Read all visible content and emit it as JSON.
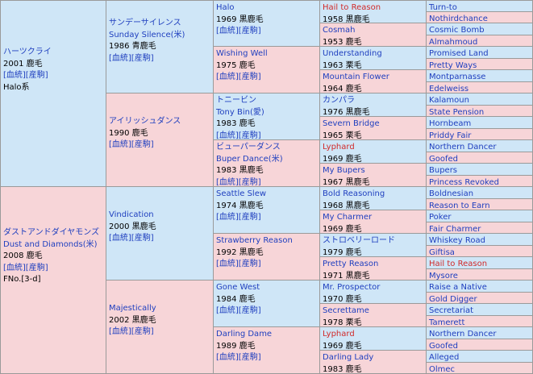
{
  "horse": {
    "name": "ハーツクライ",
    "year": "2001 鹿毛",
    "links": "[血統][産駒]",
    "line": "Halo系"
  },
  "gen1": [
    {
      "name": "ハーツクライ",
      "year": "2001 鹿毛",
      "links": "[血統][産駒]",
      "extra": "Halo系",
      "sex": "m"
    },
    {
      "name": "ダストアンドダイヤモンズ",
      "name2": "Dust and Diamonds(米)",
      "year": "2008 鹿毛",
      "links": "[血統][産駒]",
      "extra": "FNo.[3-d]",
      "sex": "f"
    }
  ],
  "gen2": [
    {
      "name": "サンデーサイレンス",
      "name2": "Sunday Silence(米)",
      "year": "1986 青鹿毛",
      "links": "[血統][産駒]",
      "sex": "m"
    },
    {
      "name": "アイリッシュダンス",
      "year": "1990 鹿毛",
      "links": "[血統][産駒]",
      "sex": "f"
    },
    {
      "name": "Vindication",
      "year": "2000 黒鹿毛",
      "links": "[血統][産駒]",
      "sex": "m"
    },
    {
      "name": "Majestically",
      "year": "2002 黒鹿毛",
      "links": "[血統][産駒]",
      "sex": "f"
    }
  ],
  "gen3": [
    {
      "name": "Halo",
      "year": "1969 黒鹿毛",
      "links": "[血統][産駒]",
      "sex": "m"
    },
    {
      "name": "Wishing Well",
      "year": "1975 鹿毛",
      "links": "[血統][産駒]",
      "sex": "f"
    },
    {
      "name": "トニービン",
      "name2": "Tony Bin(愛)",
      "year": "1983 鹿毛",
      "links": "[血統][産駒]",
      "sex": "m"
    },
    {
      "name": "ビューパーダンス",
      "name2": "Buper Dance(米)",
      "year": "1983 黒鹿毛",
      "links": "[血統][産駒]",
      "sex": "f"
    },
    {
      "name": "Seattle Slew",
      "year": "1974 黒鹿毛",
      "links": "[血統][産駒]",
      "sex": "m"
    },
    {
      "name": "Strawberry Reason",
      "year": "1992 黒鹿毛",
      "links": "[血統][産駒]",
      "sex": "f"
    },
    {
      "name": "Gone West",
      "year": "1984 鹿毛",
      "links": "[血統][産駒]",
      "sex": "m"
    },
    {
      "name": "Darling Dame",
      "year": "1989 鹿毛",
      "links": "[血統][産駒]",
      "sex": "f"
    }
  ],
  "gen4": [
    {
      "name": "Hail to Reason",
      "year": "1958 黒鹿毛",
      "sex": "m",
      "color": "red"
    },
    {
      "name": "Cosmah",
      "year": "1953 鹿毛",
      "sex": "f"
    },
    {
      "name": "Understanding",
      "year": "1963 栗毛",
      "sex": "m"
    },
    {
      "name": "Mountain Flower",
      "year": "1964 鹿毛",
      "sex": "f"
    },
    {
      "name": "カンパラ",
      "year": "1976 黒鹿毛",
      "sex": "m"
    },
    {
      "name": "Severn Bridge",
      "year": "1965 栗毛",
      "sex": "f"
    },
    {
      "name": "Lyphard",
      "year": "1969 鹿毛",
      "sex": "m",
      "color": "red"
    },
    {
      "name": "My Bupers",
      "year": "1967 黒鹿毛",
      "sex": "f"
    },
    {
      "name": "Bold Reasoning",
      "year": "1968 黒鹿毛",
      "sex": "m"
    },
    {
      "name": "My Charmer",
      "year": "1969 鹿毛",
      "sex": "f"
    },
    {
      "name": "ストロベリーロード",
      "year": "1979 鹿毛",
      "sex": "m"
    },
    {
      "name": "Pretty Reason",
      "year": "1971 黒鹿毛",
      "sex": "f"
    },
    {
      "name": "Mr. Prospector",
      "year": "1970 鹿毛",
      "sex": "m"
    },
    {
      "name": "Secrettame",
      "year": "1978 栗毛",
      "sex": "f"
    },
    {
      "name": "Lyphard",
      "year": "1969 鹿毛",
      "sex": "m",
      "color": "red"
    },
    {
      "name": "Darling Lady",
      "year": "1983 鹿毛",
      "sex": "f"
    }
  ],
  "gen5": [
    {
      "name": "Turn-to",
      "sex": "m"
    },
    {
      "name": "Nothirdchance",
      "sex": "f"
    },
    {
      "name": "Cosmic Bomb",
      "sex": "m"
    },
    {
      "name": "Almahmoud",
      "sex": "f"
    },
    {
      "name": "Promised Land",
      "sex": "m"
    },
    {
      "name": "Pretty Ways",
      "sex": "f"
    },
    {
      "name": "Montparnasse",
      "sex": "m"
    },
    {
      "name": "Edelweiss",
      "sex": "f"
    },
    {
      "name": "Kalamoun",
      "sex": "m"
    },
    {
      "name": "State Pension",
      "sex": "f"
    },
    {
      "name": "Hornbeam",
      "sex": "m"
    },
    {
      "name": "Priddy Fair",
      "sex": "f"
    },
    {
      "name": "Northern Dancer",
      "sex": "m"
    },
    {
      "name": "Goofed",
      "sex": "f"
    },
    {
      "name": "Bupers",
      "sex": "m"
    },
    {
      "name": "Princess Revoked",
      "sex": "f"
    },
    {
      "name": "Boldnesian",
      "sex": "m"
    },
    {
      "name": "Reason to Earn",
      "sex": "f"
    },
    {
      "name": "Poker",
      "sex": "m"
    },
    {
      "name": "Fair Charmer",
      "sex": "f"
    },
    {
      "name": "Whiskey Road",
      "sex": "m"
    },
    {
      "name": "Giftisa",
      "sex": "f"
    },
    {
      "name": "Hail to Reason",
      "sex": "m",
      "color": "red"
    },
    {
      "name": "Mysore",
      "sex": "f"
    },
    {
      "name": "Raise a Native",
      "sex": "m"
    },
    {
      "name": "Gold Digger",
      "sex": "f"
    },
    {
      "name": "Secretariat",
      "sex": "m"
    },
    {
      "name": "Tamerett",
      "sex": "f"
    },
    {
      "name": "Northern Dancer",
      "sex": "m"
    },
    {
      "name": "Goofed",
      "sex": "f"
    },
    {
      "name": "Alleged",
      "sex": "m"
    },
    {
      "name": "Olmec",
      "sex": "f"
    }
  ]
}
